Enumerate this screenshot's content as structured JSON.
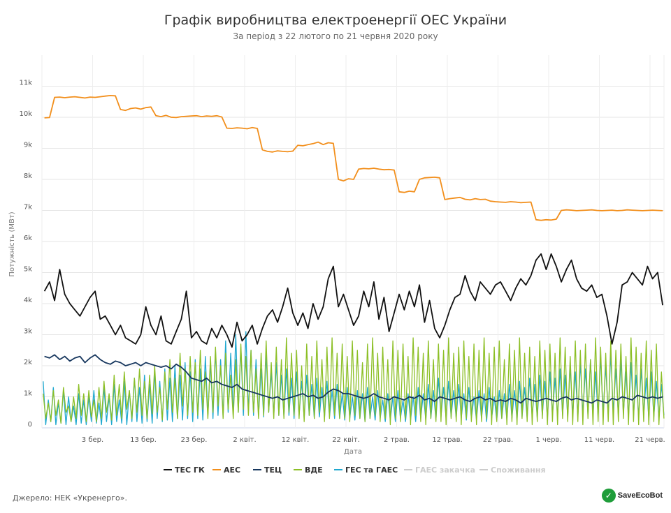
{
  "header": {
    "title": "Графік виробництва електроенергії ОЕС України",
    "subtitle": "За період з 22 лютого по 21 червня 2020 року"
  },
  "footer": {
    "source": "Джерело: НЕК «Укренерго».",
    "logo_text": "SaveEcoBot"
  },
  "chart_data": {
    "type": "line",
    "title": "Графік виробництва електроенергії ОЕС України",
    "subtitle": "За період з 22 лютого по 21 червня 2020 року",
    "xlabel": "Дата",
    "ylabel": "Потужність (МВт)",
    "x_start": "2020-02-22",
    "x_end": "2020-06-23",
    "ylim": [
      0,
      12000
    ],
    "grid": true,
    "legend_position": "bottom",
    "x_ticks": [
      {
        "date": "2020-03-03",
        "label": "3 бер."
      },
      {
        "date": "2020-03-13",
        "label": "13 бер."
      },
      {
        "date": "2020-03-23",
        "label": "23 бер."
      },
      {
        "date": "2020-04-02",
        "label": "2 квіт."
      },
      {
        "date": "2020-04-12",
        "label": "12 квіт."
      },
      {
        "date": "2020-04-22",
        "label": "22 квіт."
      },
      {
        "date": "2020-05-02",
        "label": "2 трав."
      },
      {
        "date": "2020-05-12",
        "label": "12 трав."
      },
      {
        "date": "2020-05-22",
        "label": "22 трав."
      },
      {
        "date": "2020-06-01",
        "label": "1 черв."
      },
      {
        "date": "2020-06-11",
        "label": "11 черв."
      },
      {
        "date": "2020-06-21",
        "label": "21 черв."
      }
    ],
    "y_ticks": [
      {
        "value": 0,
        "label": "0"
      },
      {
        "value": 1000,
        "label": "1k"
      },
      {
        "value": 2000,
        "label": "2k"
      },
      {
        "value": 3000,
        "label": "3k"
      },
      {
        "value": 4000,
        "label": "4k"
      },
      {
        "value": 5000,
        "label": "5k"
      },
      {
        "value": 6000,
        "label": "6k"
      },
      {
        "value": 7000,
        "label": "7k"
      },
      {
        "value": 8000,
        "label": "8k"
      },
      {
        "value": 9000,
        "label": "9k"
      },
      {
        "value": 10000,
        "label": "10k"
      },
      {
        "value": 11000,
        "label": "11k"
      }
    ],
    "series": [
      {
        "name": "ТЕС ГК",
        "color": "#111111",
        "visible": true,
        "step_days": 1,
        "values": [
          4400,
          4700,
          4100,
          5100,
          4300,
          4000,
          3800,
          3600,
          3900,
          4200,
          4400,
          3500,
          3600,
          3300,
          3000,
          3300,
          2900,
          2800,
          2700,
          3000,
          3900,
          3300,
          3000,
          3600,
          2800,
          2700,
          3100,
          3500,
          4400,
          2900,
          3100,
          2800,
          2700,
          3200,
          2900,
          3300,
          3000,
          2600,
          3400,
          2800,
          3000,
          3300,
          2700,
          3200,
          3600,
          3800,
          3400,
          3900,
          4500,
          3700,
          3300,
          3700,
          3200,
          4000,
          3500,
          3900,
          4800,
          5200,
          3900,
          4300,
          3800,
          3300,
          3600,
          4400,
          3900,
          4700,
          3500,
          4200,
          3100,
          3700,
          4300,
          3800,
          4400,
          3900,
          4600,
          3400,
          4100,
          3200,
          2900,
          3300,
          3800,
          4200,
          4300,
          4900,
          4400,
          4100,
          4700,
          4500,
          4300,
          4600,
          4700,
          4400,
          4100,
          4500,
          4800,
          4600,
          4900,
          5400,
          5600,
          5100,
          5600,
          5200,
          4700,
          5100,
          5400,
          4800,
          4500,
          4400,
          4600,
          4200,
          4300,
          3600,
          2700,
          3400,
          4600,
          4700,
          5000,
          4800,
          4600,
          5200,
          4800,
          5000,
          3950
        ]
      },
      {
        "name": "АЕС",
        "color": "#f28f1c",
        "visible": true,
        "step_days": 1,
        "values": [
          9980,
          9990,
          10640,
          10650,
          10630,
          10650,
          10660,
          10640,
          10620,
          10650,
          10640,
          10660,
          10680,
          10700,
          10690,
          10250,
          10220,
          10280,
          10300,
          10260,
          10310,
          10330,
          10050,
          10020,
          10060,
          10000,
          9990,
          10020,
          10030,
          10040,
          10050,
          10020,
          10040,
          10030,
          10050,
          10010,
          9650,
          9640,
          9660,
          9650,
          9630,
          9670,
          9640,
          8950,
          8900,
          8880,
          8920,
          8900,
          8890,
          8910,
          9100,
          9080,
          9120,
          9150,
          9200,
          9120,
          9180,
          9160,
          8000,
          7950,
          8020,
          8000,
          8330,
          8350,
          8340,
          8360,
          8330,
          8310,
          8320,
          8300,
          7600,
          7580,
          7620,
          7600,
          8000,
          8050,
          8060,
          8070,
          8050,
          7350,
          7380,
          7400,
          7420,
          7360,
          7340,
          7380,
          7350,
          7360,
          7300,
          7280,
          7270,
          7260,
          7280,
          7270,
          7250,
          7260,
          7270,
          6700,
          6680,
          6700,
          6690,
          6720,
          7000,
          7020,
          7010,
          6990,
          7000,
          7010,
          7020,
          7000,
          6990,
          7000,
          7010,
          6990,
          7000,
          7020,
          7010,
          7000,
          6990,
          7000,
          7010,
          7000,
          6990
        ]
      },
      {
        "name": "ТЕЦ",
        "color": "#17375e",
        "visible": true,
        "step_days": 1,
        "values": [
          2300,
          2250,
          2350,
          2200,
          2300,
          2150,
          2250,
          2300,
          2100,
          2250,
          2350,
          2200,
          2100,
          2050,
          2150,
          2100,
          2000,
          2050,
          2100,
          2000,
          2100,
          2050,
          2000,
          1950,
          2000,
          1900,
          2050,
          1950,
          1800,
          1600,
          1550,
          1500,
          1600,
          1450,
          1500,
          1400,
          1350,
          1300,
          1400,
          1250,
          1200,
          1150,
          1100,
          1050,
          1000,
          950,
          1000,
          900,
          950,
          1000,
          1050,
          1100,
          1000,
          1050,
          950,
          1000,
          1150,
          1250,
          1200,
          1100,
          1100,
          1050,
          1000,
          950,
          1000,
          1100,
          1000,
          950,
          900,
          1000,
          950,
          900,
          1000,
          950,
          1050,
          900,
          950,
          850,
          1000,
          950,
          900,
          950,
          1000,
          900,
          850,
          950,
          1000,
          900,
          950,
          850,
          900,
          850,
          950,
          900,
          800,
          950,
          900,
          850,
          900,
          950,
          900,
          850,
          950,
          1000,
          900,
          950,
          900,
          850,
          800,
          900,
          850,
          800,
          950,
          900,
          1000,
          950,
          900,
          1050,
          1000,
          950,
          1000,
          950,
          1000
        ]
      },
      {
        "name": "ВДЕ",
        "color": "#8cbf26",
        "visible": true,
        "step_days": 0.5,
        "values": [
          1100,
          300,
          800,
          200,
          1200,
          400,
          900,
          150,
          1300,
          500,
          700,
          200,
          1000,
          300,
          1400,
          400,
          1100,
          200,
          1200,
          350,
          900,
          200,
          1300,
          300,
          1500,
          500,
          1100,
          250,
          1700,
          400,
          1400,
          300,
          1800,
          600,
          1200,
          300,
          1600,
          500,
          1900,
          400,
          1500,
          300,
          1700,
          450,
          2000,
          500,
          1300,
          250,
          1800,
          600,
          2200,
          500,
          1600,
          300,
          2400,
          700,
          1900,
          400,
          2300,
          500,
          2100,
          400,
          2500,
          600,
          1800,
          300,
          2300,
          500,
          2600,
          700,
          2000,
          300,
          2400,
          600,
          1700,
          300,
          2200,
          500,
          2700,
          600,
          2300,
          400,
          2500,
          500,
          1900,
          300,
          2400,
          400,
          2800,
          500,
          2100,
          300,
          2600,
          400,
          2200,
          300,
          2900,
          500,
          2400,
          400,
          2500,
          300,
          2000,
          200,
          2700,
          400,
          2300,
          300,
          2800,
          500,
          2200,
          200,
          2600,
          300,
          2900,
          400,
          2400,
          300,
          2700,
          300,
          2300,
          200,
          2800,
          400,
          2500,
          300,
          2100,
          200,
          2700,
          300,
          2900,
          400,
          2400,
          200,
          2600,
          300,
          2200,
          100,
          2800,
          300,
          2500,
          200,
          2700,
          300,
          2300,
          100,
          2900,
          400,
          2600,
          200,
          2400,
          100,
          2800,
          300,
          2200,
          200,
          2700,
          200,
          2500,
          100,
          2900,
          300,
          2400,
          200,
          2600,
          100,
          2800,
          300,
          2300,
          200,
          2700,
          100,
          2500,
          200,
          2900,
          300,
          2400,
          100,
          2600,
          200,
          2800,
          300,
          2200,
          100,
          2700,
          200,
          2500,
          100,
          2900,
          300,
          2400,
          200,
          2600,
          100,
          2300,
          200,
          2800,
          300,
          2500,
          100,
          2700,
          200,
          2400,
          100,
          2900,
          300,
          2600,
          200,
          2300,
          100,
          2800,
          200,
          2500,
          100,
          2700,
          300,
          2200,
          100,
          2900,
          200,
          2600,
          100,
          2400,
          200,
          2800,
          100,
          2500,
          200,
          2700,
          300,
          2300,
          100,
          2900,
          200,
          2600,
          100,
          2400,
          200,
          2800,
          100,
          2500,
          200,
          2700,
          100,
          1800,
          300
        ]
      },
      {
        "name": "ГЕС та ГАЕС",
        "color": "#1fa8cf",
        "visible": true,
        "step_days": 0.5,
        "values": [
          1500,
          100,
          900,
          200,
          1300,
          100,
          800,
          150,
          1200,
          100,
          1000,
          200,
          700,
          100,
          1100,
          150,
          900,
          100,
          1000,
          200,
          1200,
          150,
          800,
          100,
          1300,
          200,
          1000,
          100,
          1400,
          200,
          900,
          150,
          1500,
          100,
          1200,
          200,
          1600,
          200,
          1300,
          150,
          1700,
          200,
          1400,
          150,
          1800,
          300,
          1500,
          200,
          1900,
          250,
          1600,
          200,
          2000,
          300,
          1700,
          250,
          2100,
          300,
          1800,
          200,
          2200,
          300,
          1900,
          250,
          2300,
          400,
          2100,
          300,
          2500,
          400,
          2200,
          350,
          2800,
          500,
          2400,
          400,
          3000,
          500,
          2600,
          400,
          3100,
          500,
          2500,
          400,
          2200,
          400,
          1900,
          350,
          2400,
          500,
          1800,
          400,
          2100,
          400,
          1700,
          350,
          1900,
          400,
          1600,
          300,
          1800,
          400,
          1500,
          300,
          1700,
          400,
          1400,
          300,
          1600,
          350,
          1300,
          300,
          1500,
          350,
          1200,
          300,
          1400,
          300,
          1100,
          250,
          1300,
          300,
          1000,
          250,
          1200,
          300,
          1100,
          200,
          1300,
          300,
          1000,
          250,
          1200,
          300,
          900,
          200,
          1100,
          250,
          1000,
          200,
          1200,
          300,
          900,
          200,
          1100,
          250,
          1000,
          200,
          1300,
          300,
          1100,
          250,
          1400,
          300,
          1200,
          250,
          1600,
          350,
          1300,
          300,
          1500,
          350,
          1200,
          300,
          1400,
          300,
          1100,
          250,
          1300,
          300,
          1000,
          250,
          1200,
          300,
          1100,
          200,
          1300,
          300,
          1000,
          250,
          1200,
          300,
          1100,
          250,
          1400,
          300,
          1200,
          250,
          1500,
          350,
          1300,
          300,
          1600,
          350,
          1400,
          300,
          1700,
          400,
          1500,
          300,
          1800,
          400,
          1600,
          350,
          1900,
          400,
          1700,
          350,
          2000,
          400,
          1800,
          350,
          2100,
          450,
          1900,
          400,
          2200,
          400,
          1800,
          350,
          2300,
          450,
          2000,
          400,
          2400,
          500,
          1900,
          400,
          2200,
          450,
          1800,
          350,
          2100,
          400,
          1700,
          350,
          1900,
          400,
          1600,
          300,
          1800,
          350,
          1500,
          300,
          1400,
          400
        ]
      },
      {
        "name": "ГАЕС закачка",
        "color": "#cccccc",
        "visible": false,
        "values": []
      },
      {
        "name": "Споживання",
        "color": "#cccccc",
        "visible": false,
        "values": []
      }
    ]
  }
}
